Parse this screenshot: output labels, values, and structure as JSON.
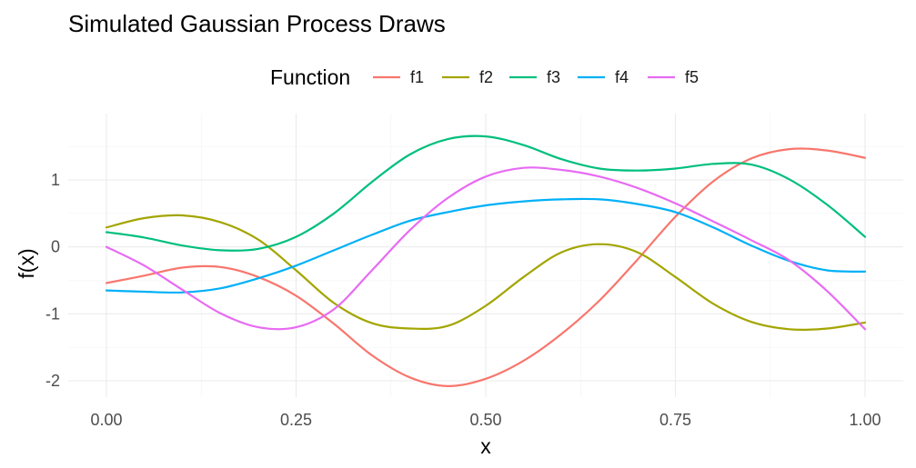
{
  "chart_data": {
    "type": "line",
    "title": "Simulated Gaussian Process Draws",
    "xlabel": "x",
    "ylabel": "f(x)",
    "xlim": [
      0,
      1
    ],
    "ylim": [
      -2.1,
      1.66
    ],
    "xticks": [
      0,
      0.25,
      0.5,
      0.75,
      1
    ],
    "xtick_labels": [
      "0.00",
      "0.25",
      "0.50",
      "0.75",
      "1.00"
    ],
    "yticks": [
      -2,
      -1,
      0,
      1
    ],
    "ytick_labels": [
      "-2",
      "-1",
      "0",
      "1"
    ],
    "grid": true,
    "legend": {
      "title": "Function",
      "position": "top"
    },
    "x": [
      0,
      0.05,
      0.1,
      0.15,
      0.2,
      0.25,
      0.3,
      0.35,
      0.4,
      0.45,
      0.5,
      0.55,
      0.6,
      0.65,
      0.7,
      0.75,
      0.8,
      0.85,
      0.9,
      0.95,
      1
    ],
    "series": [
      {
        "name": "f1",
        "color": "#F8766D",
        "values": [
          -0.54,
          -0.43,
          -0.31,
          -0.3,
          -0.45,
          -0.73,
          -1.15,
          -1.62,
          -1.95,
          -2.08,
          -1.97,
          -1.7,
          -1.3,
          -0.8,
          -0.19,
          0.45,
          0.98,
          1.32,
          1.46,
          1.44,
          1.33
        ]
      },
      {
        "name": "f2",
        "color": "#A3A500",
        "values": [
          0.29,
          0.43,
          0.47,
          0.37,
          0.11,
          -0.35,
          -0.84,
          -1.14,
          -1.22,
          -1.18,
          -0.88,
          -0.45,
          -0.08,
          0.04,
          -0.08,
          -0.45,
          -0.85,
          -1.12,
          -1.23,
          -1.22,
          -1.13
        ]
      },
      {
        "name": "f3",
        "color": "#00BF7D",
        "values": [
          0.22,
          0.14,
          0.02,
          -0.05,
          -0.03,
          0.15,
          0.5,
          0.97,
          1.38,
          1.61,
          1.65,
          1.52,
          1.31,
          1.17,
          1.14,
          1.17,
          1.24,
          1.23,
          1.01,
          0.63,
          0.15
        ]
      },
      {
        "name": "f4",
        "color": "#00B0F6",
        "values": [
          -0.65,
          -0.67,
          -0.68,
          -0.62,
          -0.47,
          -0.28,
          -0.05,
          0.18,
          0.39,
          0.52,
          0.62,
          0.68,
          0.71,
          0.71,
          0.64,
          0.52,
          0.29,
          0.02,
          -0.21,
          -0.35,
          -0.37
        ]
      },
      {
        "name": "f5",
        "color": "#E76BF3",
        "values": [
          0.0,
          -0.28,
          -0.64,
          -0.99,
          -1.2,
          -1.2,
          -0.93,
          -0.35,
          0.25,
          0.73,
          1.05,
          1.18,
          1.15,
          1.05,
          0.88,
          0.65,
          0.38,
          0.1,
          -0.2,
          -0.66,
          -1.23
        ]
      }
    ]
  }
}
